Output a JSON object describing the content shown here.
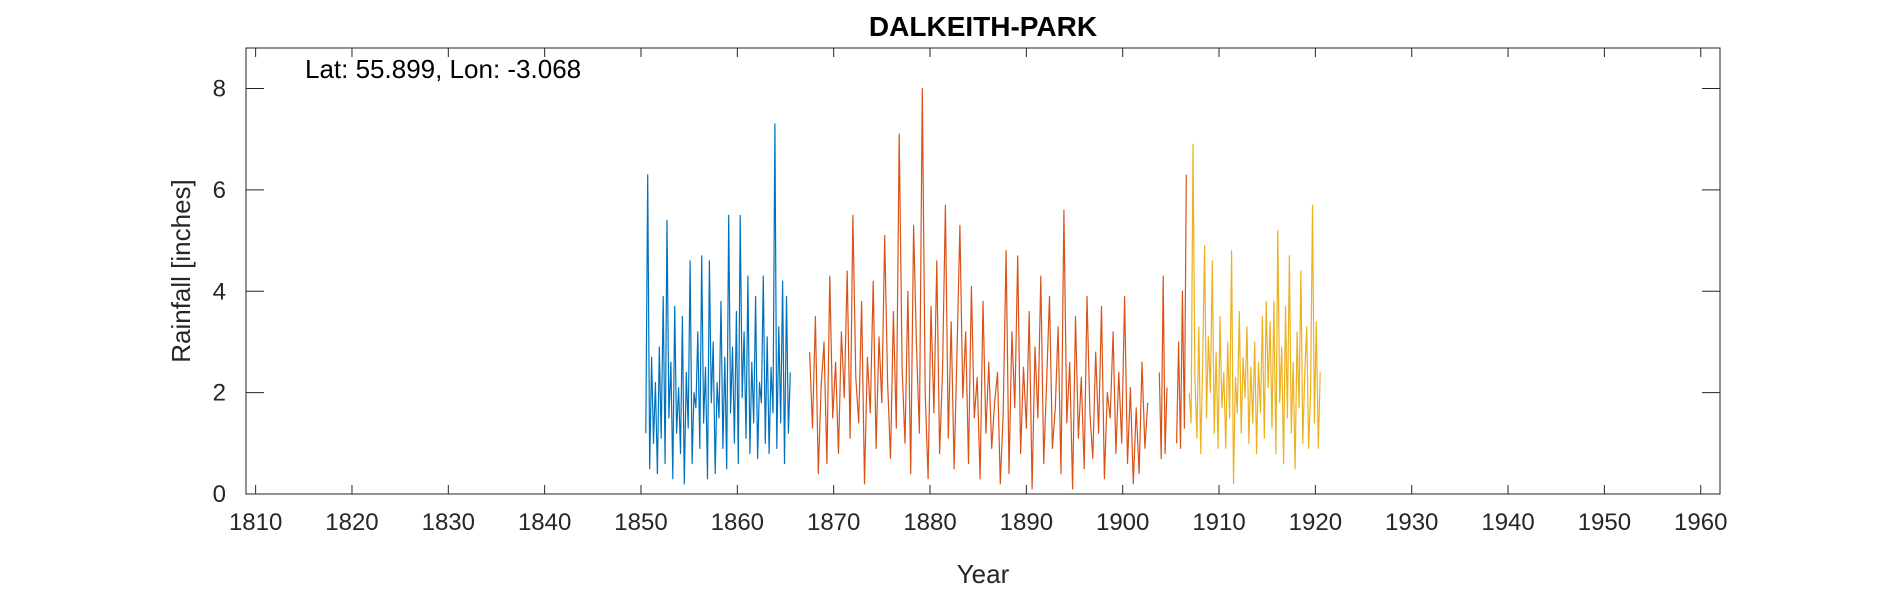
{
  "chart_data": {
    "type": "line",
    "title": "DALKEITH-PARK",
    "xlabel": "Year",
    "ylabel": "Rainfall [inches]",
    "annotation": "Lat: 55.899, Lon: -3.068",
    "xlim": [
      1809,
      1962
    ],
    "ylim": [
      0,
      8.8
    ],
    "xticks": [
      1810,
      1820,
      1830,
      1840,
      1850,
      1860,
      1870,
      1880,
      1890,
      1900,
      1910,
      1920,
      1930,
      1940,
      1950,
      1960
    ],
    "yticks": [
      0,
      2,
      4,
      6,
      8
    ],
    "grid": false,
    "legend": "none",
    "series_colors": [
      "#0072BD",
      "#D95319",
      "#EDB120"
    ],
    "series": [
      {
        "x": [
          1850.5,
          1850.7,
          1850.9,
          1851.1,
          1851.3,
          1851.5,
          1851.7,
          1851.9,
          1852.1,
          1852.3,
          1852.5,
          1852.7,
          1852.9,
          1853.1,
          1853.3,
          1853.5,
          1853.7,
          1853.9,
          1854.1,
          1854.3,
          1854.5,
          1854.7,
          1854.9,
          1855.1,
          1855.3,
          1855.5,
          1855.7,
          1855.9,
          1856.1,
          1856.3,
          1856.5,
          1856.7,
          1856.9,
          1857.1,
          1857.3,
          1857.5,
          1857.7,
          1857.9,
          1858.1,
          1858.3,
          1858.5,
          1858.7,
          1858.9,
          1859.1,
          1859.3,
          1859.5,
          1859.7,
          1859.9,
          1860.1,
          1860.3,
          1860.5,
          1860.7,
          1860.9,
          1861.1,
          1861.3,
          1861.5,
          1861.7,
          1861.9,
          1862.1,
          1862.3,
          1862.5,
          1862.7,
          1862.9,
          1863.1,
          1863.3,
          1863.5,
          1863.7,
          1863.9,
          1864.1,
          1864.3,
          1864.5,
          1864.7,
          1864.9,
          1865.1,
          1865.3,
          1865.5
        ],
        "y": [
          1.2,
          6.3,
          0.5,
          2.7,
          1.0,
          2.2,
          0.4,
          2.9,
          1.1,
          3.9,
          0.6,
          5.4,
          1.5,
          2.6,
          0.3,
          3.7,
          1.2,
          2.1,
          0.8,
          3.5,
          0.2,
          2.4,
          1.3,
          4.6,
          0.6,
          2.0,
          1.7,
          3.2,
          0.9,
          4.7,
          1.4,
          2.5,
          0.3,
          4.6,
          1.8,
          3.0,
          0.4,
          2.2,
          1.5,
          3.8,
          0.9,
          2.7,
          0.5,
          5.5,
          1.6,
          2.9,
          1.0,
          3.6,
          0.6,
          5.5,
          1.9,
          3.2,
          1.1,
          4.3,
          0.8,
          2.6,
          1.4,
          3.9,
          0.7,
          2.2,
          1.8,
          4.3,
          1.0,
          3.1,
          0.8,
          2.5,
          1.6,
          7.3,
          0.9,
          3.3,
          1.4,
          4.2,
          0.6,
          3.9,
          1.2,
          2.4
        ]
      },
      {
        "x": [
          1867.5,
          1867.8,
          1868.1,
          1868.4,
          1868.7,
          1869.0,
          1869.3,
          1869.6,
          1869.9,
          1870.2,
          1870.5,
          1870.8,
          1871.1,
          1871.4,
          1871.7,
          1872.0,
          1872.3,
          1872.6,
          1872.9,
          1873.2,
          1873.5,
          1873.8,
          1874.1,
          1874.4,
          1874.7,
          1875.0,
          1875.3,
          1875.6,
          1875.9,
          1876.2,
          1876.5,
          1876.8,
          1877.1,
          1877.4,
          1877.7,
          1878.0,
          1878.3,
          1878.6,
          1878.9,
          1879.2,
          1879.5,
          1879.8,
          1880.1,
          1880.4,
          1880.7,
          1881.0,
          1881.3,
          1881.6,
          1881.9,
          1882.2,
          1882.5,
          1882.8,
          1883.1,
          1883.4,
          1883.7,
          1884.0,
          1884.3,
          1884.6,
          1884.9,
          1885.2,
          1885.5,
          1885.8,
          1886.1,
          1886.4,
          1886.7,
          1887.0,
          1887.3,
          1887.6,
          1887.9,
          1888.2,
          1888.5,
          1888.8,
          1889.1,
          1889.4,
          1889.7,
          1890.0,
          1890.3,
          1890.6,
          1890.9,
          1891.2,
          1891.5,
          1891.8,
          1892.1,
          1892.4,
          1892.7,
          1893.0,
          1893.3,
          1893.6,
          1893.9,
          1894.2,
          1894.5,
          1894.8,
          1895.1,
          1895.4,
          1895.7,
          1896.0,
          1896.3,
          1896.6,
          1896.9,
          1897.2,
          1897.5,
          1897.8,
          1898.1,
          1898.4,
          1898.7,
          1899.0,
          1899.3,
          1899.6,
          1899.9,
          1900.2,
          1900.5,
          1900.8,
          1901.1,
          1901.4,
          1901.7,
          1902.0,
          1902.3,
          1902.6
        ],
        "y": [
          2.8,
          1.3,
          3.5,
          0.4,
          2.1,
          3.0,
          0.6,
          4.3,
          1.5,
          2.6,
          0.8,
          3.2,
          1.9,
          4.4,
          1.1,
          5.5,
          2.3,
          1.4,
          3.8,
          0.2,
          2.7,
          1.6,
          4.2,
          0.9,
          3.1,
          1.8,
          5.1,
          2.2,
          0.7,
          3.6,
          1.3,
          7.1,
          2.5,
          1.0,
          4.0,
          0.4,
          5.3,
          2.9,
          1.2,
          8.0,
          2.0,
          0.3,
          3.7,
          1.6,
          4.6,
          0.8,
          2.4,
          5.7,
          1.1,
          3.4,
          0.5,
          2.8,
          5.3,
          1.9,
          3.2,
          0.6,
          4.1,
          1.5,
          2.3,
          0.3,
          3.8,
          1.2,
          2.6,
          0.9,
          1.8,
          2.4,
          0.2,
          1.6,
          4.8,
          0.4,
          3.2,
          1.7,
          4.7,
          0.8,
          2.5,
          1.3,
          3.6,
          0.1,
          2.9,
          1.5,
          4.3,
          0.6,
          2.2,
          3.9,
          0.9,
          1.7,
          3.3,
          0.4,
          5.6,
          1.4,
          2.6,
          0.1,
          3.5,
          1.1,
          2.3,
          0.5,
          3.9,
          1.6,
          0.7,
          2.8,
          1.2,
          3.7,
          0.3,
          2.0,
          1.5,
          3.2,
          0.8,
          2.4,
          1.0,
          3.9,
          0.6,
          2.1,
          0.2,
          1.7,
          0.4,
          2.6,
          0.9,
          1.8
        ]
      },
      {
        "x": [
          1903.8,
          1904.0,
          1904.2,
          1904.4,
          1904.6
        ],
        "y": [
          2.4,
          0.7,
          4.3,
          0.8,
          2.1
        ]
      },
      {
        "x": [
          1905.6,
          1905.8,
          1906.0,
          1906.2,
          1906.4,
          1906.6
        ],
        "y": [
          1.0,
          3.0,
          0.9,
          4.0,
          1.3,
          6.3
        ]
      },
      {
        "x": [
          1906.9,
          1907.1,
          1907.3,
          1907.5,
          1907.7,
          1907.9,
          1908.1,
          1908.3,
          1908.5,
          1908.7,
          1908.9,
          1909.1,
          1909.3,
          1909.5,
          1909.7,
          1909.9,
          1910.1,
          1910.3,
          1910.5,
          1910.7,
          1910.9,
          1911.1,
          1911.3,
          1911.5,
          1911.7,
          1911.9,
          1912.1,
          1912.3,
          1912.5,
          1912.7,
          1912.9,
          1913.1,
          1913.3,
          1913.5,
          1913.7,
          1913.9,
          1914.1,
          1914.3,
          1914.5,
          1914.7,
          1914.9,
          1915.1,
          1915.3,
          1915.5,
          1915.7,
          1915.9,
          1916.1,
          1916.3,
          1916.5,
          1916.7,
          1916.9,
          1917.1,
          1917.3,
          1917.5,
          1917.7,
          1917.9,
          1918.1,
          1918.3,
          1918.5,
          1918.7,
          1918.9,
          1919.1,
          1919.3,
          1919.5,
          1919.7,
          1919.9,
          1920.1,
          1920.3,
          1920.5
        ],
        "y": [
          2.0,
          1.4,
          6.9,
          2.3,
          1.1,
          3.3,
          0.8,
          2.6,
          4.9,
          1.5,
          3.1,
          2.0,
          4.6,
          1.2,
          2.8,
          0.9,
          3.5,
          1.7,
          2.4,
          0.9,
          3.0,
          1.5,
          4.8,
          0.2,
          2.3,
          1.6,
          3.6,
          1.2,
          2.7,
          1.9,
          3.3,
          1.0,
          2.5,
          1.4,
          3.0,
          0.8,
          2.6,
          1.6,
          3.5,
          1.1,
          3.8,
          2.1,
          3.4,
          1.3,
          3.8,
          0.8,
          5.2,
          1.8,
          2.9,
          0.6,
          3.7,
          1.5,
          4.7,
          1.2,
          2.6,
          0.5,
          3.2,
          1.7,
          4.4,
          1.0,
          2.4,
          3.3,
          0.9,
          2.0,
          5.7,
          1.4,
          3.4,
          0.9,
          2.4
        ]
      }
    ]
  }
}
